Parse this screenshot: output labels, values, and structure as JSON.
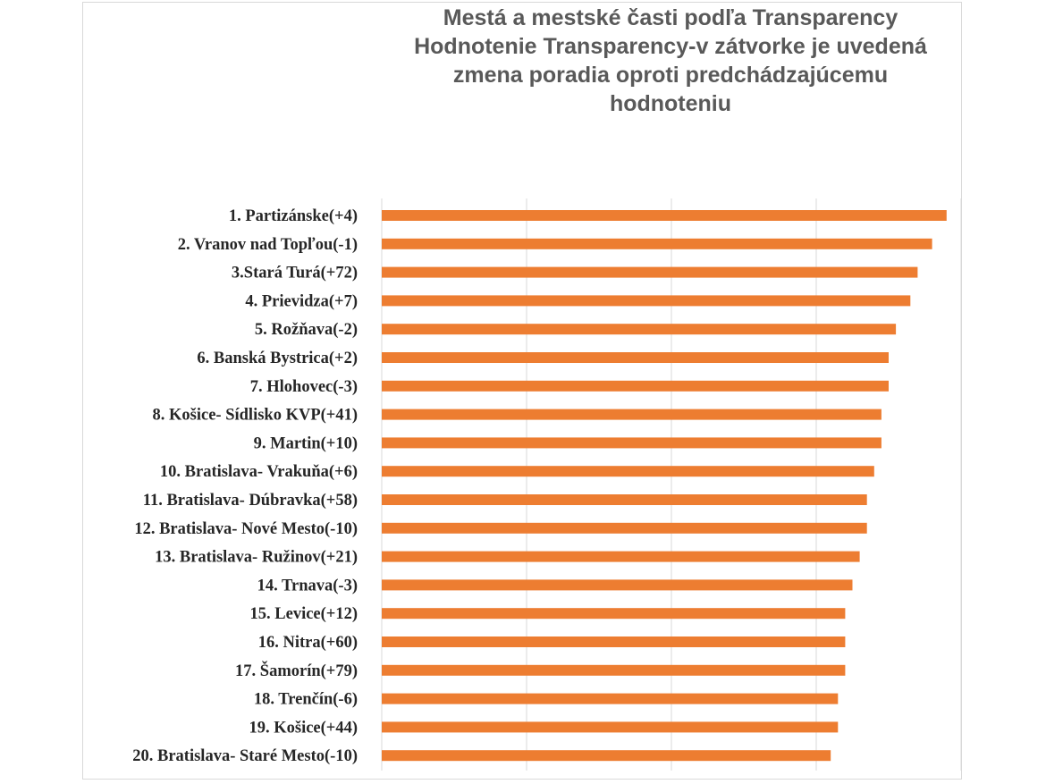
{
  "chart_data": {
    "type": "bar",
    "orientation": "horizontal",
    "title_lines": [
      "Mestá a mestské časti podľa Transparency",
      "Hodnotenie Transparency-v zátvorke je uvedená",
      "zmena poradia oproti predchádzajúcemu",
      "hodnoteniu"
    ],
    "categories": [
      "1. Partizánske(+4)",
      "2. Vranov nad Topľou(-1)",
      "3.Stará Turá(+72)",
      "4. Prievidza(+7)",
      "5. Rožňava(-2)",
      "6. Banská Bystrica(+2)",
      "7. Hlohovec(-3)",
      "8. Košice- Sídlisko KVP(+41)",
      "9. Martin(+10)",
      "10. Bratislava- Vrakuňa(+6)",
      "11. Bratislava- Dúbravka(+58)",
      "12. Bratislava- Nové Mesto(-10)",
      "13. Bratislava- Ružinov(+21)",
      "14. Trnava(-3)",
      "15. Levice(+12)",
      "16. Nitra(+60)",
      "17. Šamorín(+79)",
      "18. Trenčín(-6)",
      "19. Košice(+44)",
      "20. Bratislava- Staré Mesto(-10)"
    ],
    "values": [
      78,
      76,
      74,
      73,
      71,
      70,
      70,
      69,
      69,
      68,
      67,
      67,
      66,
      65,
      64,
      64,
      64,
      63,
      63,
      62
    ],
    "xlim": [
      0,
      80
    ],
    "gridlines": [
      0,
      20,
      40,
      60,
      80
    ],
    "grid": true,
    "legend": "none",
    "bar_color": "#ed7d31",
    "grid_color": "#d9d9d9"
  }
}
